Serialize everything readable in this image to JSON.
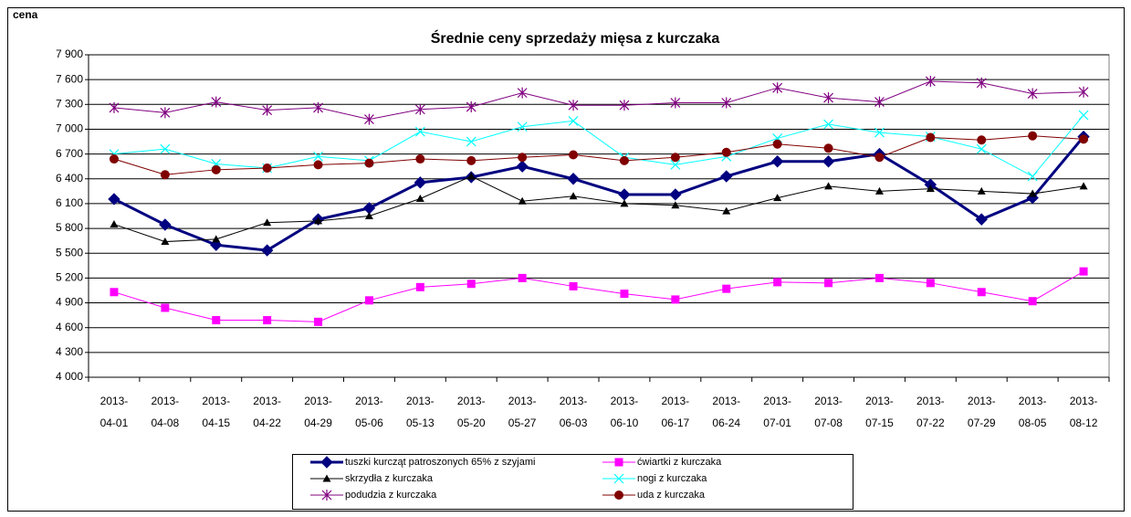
{
  "chart_data": {
    "type": "line",
    "title": "Średnie ceny sprzedaży mięsa z kurczaka",
    "y_label": "cena",
    "categories": [
      "2013-04-01",
      "2013-04-08",
      "2013-04-15",
      "2013-04-22",
      "2013-04-29",
      "2013-05-06",
      "2013-05-13",
      "2013-05-20",
      "2013-05-27",
      "2013-06-03",
      "2013-06-10",
      "2013-06-17",
      "2013-06-24",
      "2013-07-01",
      "2013-07-08",
      "2013-07-15",
      "2013-07-22",
      "2013-07-29",
      "2013-08-05",
      "2013-08-12"
    ],
    "series": [
      {
        "name": "tuszki kurcząt patroszonych 65% z szyjami",
        "color": "#000080",
        "marker": "diamond",
        "width": 3,
        "values": [
          6155,
          5845,
          5600,
          5535,
          5910,
          6045,
          6355,
          6420,
          6550,
          6400,
          6210,
          6210,
          6430,
          6610,
          6610,
          6700,
          6330,
          5910,
          6170,
          6910
        ]
      },
      {
        "name": "ćwiartki z kurczaka",
        "color": "#ff00ff",
        "marker": "square",
        "width": 1,
        "values": [
          5030,
          4840,
          4690,
          4690,
          4670,
          4930,
          5090,
          5130,
          5200,
          5100,
          5010,
          4940,
          5070,
          5150,
          5140,
          5200,
          5140,
          5030,
          4920,
          5280
        ]
      },
      {
        "name": "skrzydła z kurczaka",
        "color": "#000000",
        "marker": "triangle",
        "width": 1,
        "values": [
          5850,
          5640,
          5670,
          5870,
          5890,
          5950,
          6160,
          6430,
          6130,
          6190,
          6100,
          6080,
          6010,
          6170,
          6310,
          6250,
          6280,
          6250,
          6220,
          6310
        ]
      },
      {
        "name": "nogi z kurczaka",
        "color": "#00ffff",
        "marker": "x",
        "width": 1,
        "values": [
          6700,
          6760,
          6580,
          6530,
          6670,
          6620,
          6970,
          6850,
          7030,
          7100,
          6660,
          6570,
          6670,
          6890,
          7060,
          6960,
          6910,
          6760,
          6430,
          7170
        ]
      },
      {
        "name": "podudzia z kurczaka",
        "color": "#800080",
        "marker": "star",
        "width": 1,
        "values": [
          7260,
          7200,
          7330,
          7230,
          7260,
          7120,
          7240,
          7270,
          7440,
          7290,
          7290,
          7320,
          7320,
          7500,
          7380,
          7330,
          7580,
          7560,
          7430,
          7450
        ]
      },
      {
        "name": "uda z kurczaka",
        "color": "#800000",
        "marker": "circle",
        "width": 1,
        "values": [
          6640,
          6450,
          6510,
          6530,
          6570,
          6590,
          6640,
          6620,
          6660,
          6690,
          6620,
          6660,
          6720,
          6820,
          6770,
          6660,
          6900,
          6870,
          6920,
          6880
        ]
      }
    ],
    "ylim": [
      4000,
      7900
    ],
    "yticks": [
      {
        "value": 4000,
        "label": "4 000"
      },
      {
        "value": 4300,
        "label": "4 300"
      },
      {
        "value": 4600,
        "label": "4 600"
      },
      {
        "value": 4900,
        "label": "4 900"
      },
      {
        "value": 5200,
        "label": "5 200"
      },
      {
        "value": 5500,
        "label": "5 500"
      },
      {
        "value": 5800,
        "label": "5 800"
      },
      {
        "value": 6100,
        "label": "6 100"
      },
      {
        "value": 6400,
        "label": "6 400"
      },
      {
        "value": 6700,
        "label": "6 700"
      },
      {
        "value": 7000,
        "label": "7 000"
      },
      {
        "value": 7300,
        "label": "7 300"
      },
      {
        "value": 7600,
        "label": "7 600"
      },
      {
        "value": 7900,
        "label": "7 900"
      }
    ],
    "grid": true,
    "legend": "bottom"
  }
}
